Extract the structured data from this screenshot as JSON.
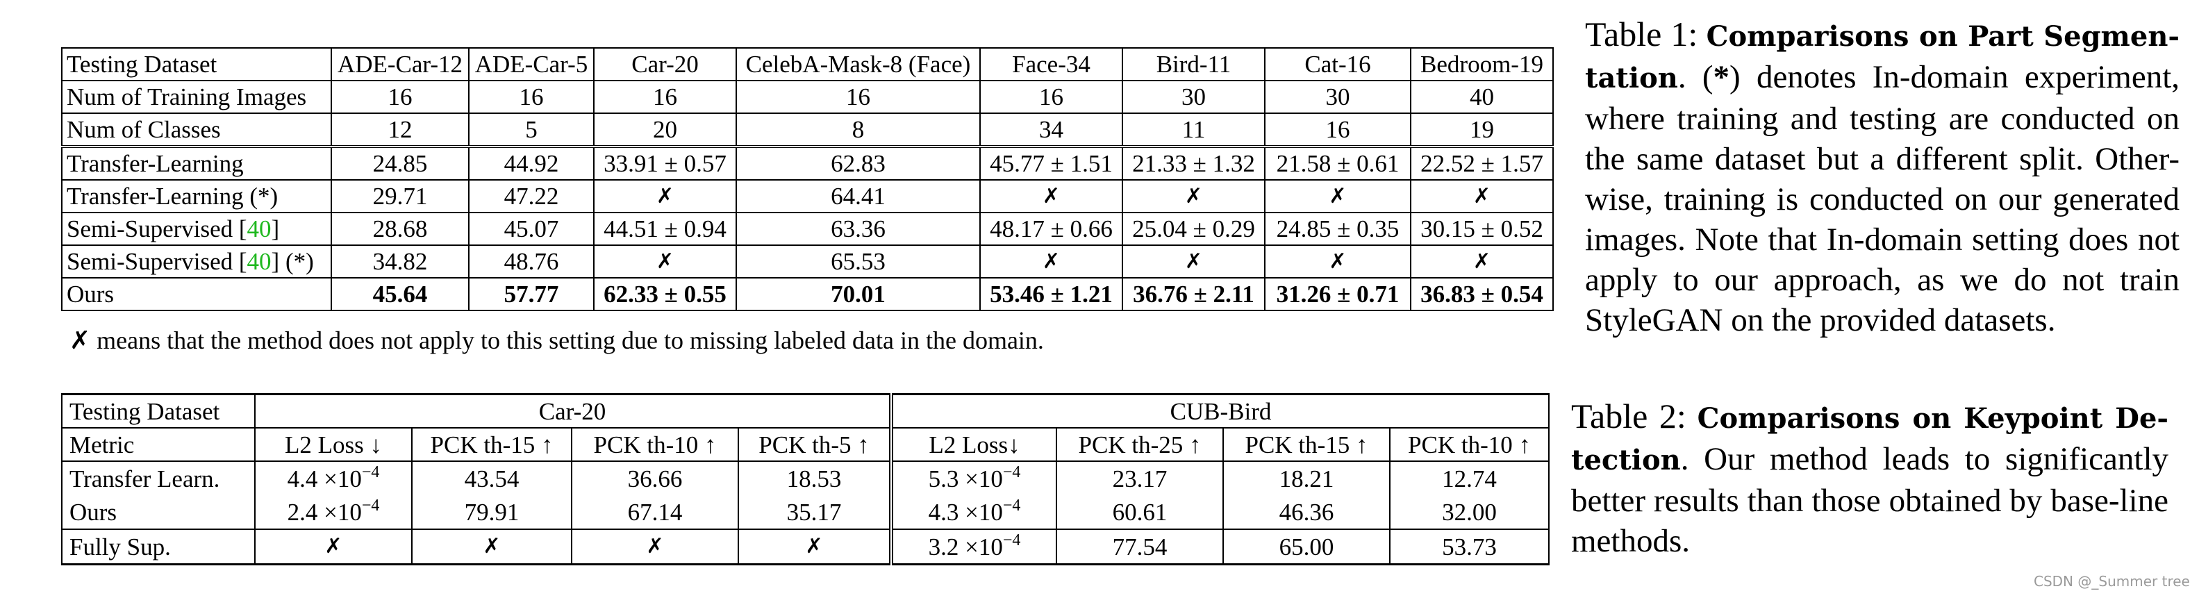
{
  "table1": {
    "header": [
      "Testing Dataset",
      "ADE-Car-12",
      "ADE-Car-5",
      "Car-20",
      "CelebA-Mask-8 (Face)",
      "Face-34",
      "Bird-11",
      "Cat-16",
      "Bedroom-19"
    ],
    "info_rows": [
      {
        "label": "Num of Training Images",
        "cells": [
          "16",
          "16",
          "16",
          "16",
          "16",
          "30",
          "30",
          "40"
        ]
      },
      {
        "label": "Num of Classes",
        "cells": [
          "12",
          "5",
          "20",
          "8",
          "34",
          "11",
          "16",
          "19"
        ]
      }
    ],
    "result_rows": [
      {
        "label": "Transfer-Learning",
        "ref": "",
        "suffix": "",
        "cells": [
          "24.85",
          "44.92",
          "33.91 ± 0.57",
          "62.83",
          "45.77 ± 1.51",
          "21.33 ± 1.32",
          "21.58 ± 0.61",
          "22.52 ± 1.57"
        ]
      },
      {
        "label": "Transfer-Learning (*)",
        "ref": "",
        "suffix": "",
        "cells": [
          "29.71",
          "47.22",
          "✗",
          "64.41",
          "✗",
          "✗",
          "✗",
          "✗"
        ]
      },
      {
        "label": "Semi-Supervised [",
        "ref": "40",
        "suffix": "]",
        "cells": [
          "28.68",
          "45.07",
          "44.51 ± 0.94",
          "63.36",
          "48.17 ± 0.66",
          "25.04 ± 0.29",
          "24.85 ± 0.35",
          "30.15 ± 0.52"
        ]
      },
      {
        "label": "Semi-Supervised [",
        "ref": "40",
        "suffix": "] (*)",
        "cells": [
          "34.82",
          "48.76",
          "✗",
          "65.53",
          "✗",
          "✗",
          "✗",
          "✗"
        ]
      },
      {
        "label": "Ours",
        "ref": "",
        "suffix": "",
        "cells": [
          "45.64",
          "57.77",
          "62.33 ± 0.55",
          "70.01",
          "53.46 ± 1.21",
          "36.76 ± 2.11",
          "31.26 ± 0.71",
          "36.83 ± 0.54"
        ]
      }
    ],
    "note": "✗ means that the method does not apply to this setting due to missing labeled data in the domain."
  },
  "caption1": {
    "label": "Table 1:",
    "title": "Comparisons on Part Segmen-tation",
    "text_a": ". (",
    "star": "*",
    "text_b": ") denotes In-domain experiment, where training and testing are conducted on the same dataset but a different split. Other-wise, training is conducted on our generated images. Note that In-domain setting does not apply to our approach, as we do not train StyleGAN on the provided datasets."
  },
  "table2": {
    "header_label": "Testing Dataset",
    "group1": "Car-20",
    "group2": "CUB-Bird",
    "metric_label": "Metric",
    "metrics": [
      "L2 Loss ↓",
      "PCK th-15 ↑",
      "PCK th-10 ↑",
      "PCK th-5 ↑",
      "L2 Loss↓",
      "PCK th-25 ↑",
      "PCK th-15 ↑",
      "PCK th-10 ↑"
    ],
    "rows": [
      {
        "label": "Transfer Learn.",
        "l2a": "4.4 ×10",
        "l2a_exp": "−4",
        "c": [
          "43.54",
          "36.66",
          "18.53"
        ],
        "l2b": "5.3 ×10",
        "l2b_exp": "−4",
        "d": [
          "23.17",
          "18.21",
          "12.74"
        ]
      },
      {
        "label": "Ours",
        "l2a": "2.4 ×10",
        "l2a_exp": "−4",
        "c": [
          "79.91",
          "67.14",
          "35.17"
        ],
        "l2b": "4.3 ×10",
        "l2b_exp": "−4",
        "d": [
          "60.61",
          "46.36",
          "32.00"
        ]
      },
      {
        "label": "Fully Sup.",
        "l2a": "✗",
        "l2a_exp": "",
        "c": [
          "✗",
          "✗",
          "✗"
        ],
        "l2b": "3.2 ×10",
        "l2b_exp": "−4",
        "d": [
          "77.54",
          "65.00",
          "53.73"
        ]
      }
    ]
  },
  "caption2": {
    "label": "Table 2:",
    "title": "Comparisons on Keypoint De-tection",
    "text": ". Our method leads to significantly better results than those obtained by base-line methods."
  },
  "watermark": "CSDN @_Summer tree"
}
